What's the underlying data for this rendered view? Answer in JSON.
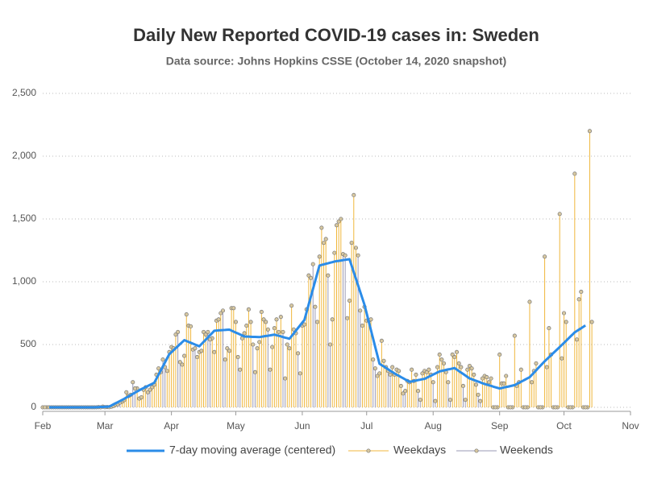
{
  "chart_data": {
    "type": "line",
    "title": "Daily New Reported COVID-19 cases in: Sweden",
    "subtitle": "Data source: Johns Hopkins CSSE (October 14, 2020 snapshot)",
    "xlim": [
      0,
      274
    ],
    "xticks": [
      {
        "value": 0,
        "label": "Feb"
      },
      {
        "value": 29,
        "label": "Mar"
      },
      {
        "value": 60,
        "label": "Apr"
      },
      {
        "value": 90,
        "label": "May"
      },
      {
        "value": 121,
        "label": "Jun"
      },
      {
        "value": 151,
        "label": "Jul"
      },
      {
        "value": 182,
        "label": "Aug"
      },
      {
        "value": 213,
        "label": "Sep"
      },
      {
        "value": 243,
        "label": "Oct"
      },
      {
        "value": 274,
        "label": "Nov"
      }
    ],
    "ylim": [
      0,
      2500
    ],
    "yticks": [
      0,
      500,
      {
        "value": 1000,
        "label": "1,000"
      },
      {
        "value": 1500,
        "label": "1,500"
      },
      {
        "value": 2000,
        "label": "2,000"
      },
      {
        "value": 2500,
        "label": "2,500"
      }
    ],
    "grid": true,
    "legend": "bottom",
    "x": [
      0,
      1,
      2,
      3,
      4,
      5,
      6,
      7,
      8,
      9,
      10,
      11,
      12,
      13,
      14,
      15,
      16,
      17,
      18,
      19,
      20,
      21,
      22,
      23,
      24,
      25,
      26,
      27,
      28,
      29,
      30,
      31,
      32,
      33,
      34,
      35,
      36,
      37,
      38,
      39,
      40,
      41,
      42,
      43,
      44,
      45,
      46,
      47,
      48,
      49,
      50,
      51,
      52,
      53,
      54,
      55,
      56,
      57,
      58,
      59,
      60,
      61,
      62,
      63,
      64,
      65,
      66,
      67,
      68,
      69,
      70,
      71,
      72,
      73,
      74,
      75,
      76,
      77,
      78,
      79,
      80,
      81,
      82,
      83,
      84,
      85,
      86,
      87,
      88,
      89,
      90,
      91,
      92,
      93,
      94,
      95,
      96,
      97,
      98,
      99,
      100,
      101,
      102,
      103,
      104,
      105,
      106,
      107,
      108,
      109,
      110,
      111,
      112,
      113,
      114,
      115,
      116,
      117,
      118,
      119,
      120,
      121,
      122,
      123,
      124,
      125,
      126,
      127,
      128,
      129,
      130,
      131,
      132,
      133,
      134,
      135,
      136,
      137,
      138,
      139,
      140,
      141,
      142,
      143,
      144,
      145,
      146,
      147,
      148,
      149,
      150,
      151,
      152,
      153,
      154,
      155,
      156,
      157,
      158,
      159,
      160,
      161,
      162,
      163,
      164,
      165,
      166,
      167,
      168,
      169,
      170,
      171,
      172,
      173,
      174,
      175,
      176,
      177,
      178,
      179,
      180,
      181,
      182,
      183,
      184,
      185,
      186,
      187,
      188,
      189,
      190,
      191,
      192,
      193,
      194,
      195,
      196,
      197,
      198,
      199,
      200,
      201,
      202,
      203,
      204,
      205,
      206,
      207,
      208,
      209,
      210,
      211,
      212,
      213,
      214,
      215,
      216,
      217,
      218,
      219,
      220,
      221,
      222,
      223,
      224,
      225,
      226,
      227,
      228,
      229,
      230,
      231,
      232,
      233,
      234,
      235,
      236,
      237,
      238,
      239,
      240,
      241,
      242,
      243,
      244,
      245,
      246,
      247,
      248,
      249,
      250,
      251,
      252,
      253,
      254,
      255,
      256
    ],
    "series": [
      {
        "name": "7-day moving average (centered)",
        "color": "#2b8ce8",
        "style": "line",
        "values": [
          null,
          null,
          null,
          0,
          0,
          0,
          0,
          0,
          0,
          0,
          0,
          0,
          0,
          0,
          0,
          0,
          0,
          0,
          0,
          0,
          0,
          0,
          0,
          0,
          0,
          1,
          2,
          3,
          3,
          4,
          5,
          6,
          15,
          24,
          33,
          41,
          50,
          59,
          68,
          78,
          87,
          97,
          107,
          117,
          126,
          136,
          145,
          153,
          162,
          170,
          179,
          187,
          196,
          228,
          261,
          293,
          326,
          358,
          391,
          423,
          439,
          455,
          471,
          487,
          503,
          519,
          535,
          528,
          521,
          514,
          507,
          500,
          493,
          486,
          504,
          521,
          539,
          557,
          575,
          592,
          610,
          611,
          613,
          614,
          615,
          616,
          618,
          619,
          611,
          603,
          595,
          588,
          580,
          572,
          564,
          563,
          563,
          562,
          561,
          561,
          560,
          559,
          562,
          565,
          568,
          570,
          573,
          576,
          579,
          574,
          570,
          565,
          560,
          555,
          551,
          546,
          567,
          589,
          610,
          632,
          653,
          675,
          696,
          758,
          820,
          882,
          943,
          1005,
          1067,
          1129,
          1134,
          1138,
          1143,
          1147,
          1152,
          1156,
          1161,
          1164,
          1166,
          1169,
          1172,
          1175,
          1177,
          1180,
          1128,
          1076,
          1024,
          972,
          920,
          868,
          816,
          749,
          682,
          615,
          548,
          481,
          414,
          347,
          336,
          325,
          314,
          303,
          292,
          281,
          270,
          260,
          251,
          241,
          232,
          222,
          213,
          203,
          206,
          210,
          213,
          217,
          220,
          224,
          227,
          235,
          244,
          252,
          261,
          269,
          278,
          286,
          290,
          294,
          298,
          302,
          305,
          309,
          313,
          301,
          289,
          277,
          266,
          254,
          242,
          230,
          224,
          217,
          211,
          205,
          199,
          192,
          186,
          181,
          176,
          171,
          165,
          160,
          155,
          150,
          154,
          158,
          162,
          165,
          169,
          173,
          177,
          186,
          195,
          204,
          213,
          222,
          231,
          240,
          258,
          276,
          294,
          313,
          331,
          349,
          367,
          383,
          399,
          415,
          432,
          448,
          464,
          480,
          497,
          513,
          530,
          547,
          564,
          580,
          597,
          608,
          619,
          630,
          641,
          652,
          null,
          null,
          null
        ]
      },
      {
        "name": "Weekdays",
        "color": "#f0b73c",
        "style": "needle",
        "values": [
          null,
          null,
          0,
          0,
          0,
          0,
          0,
          null,
          null,
          0,
          0,
          0,
          0,
          0,
          null,
          null,
          0,
          0,
          0,
          0,
          0,
          null,
          null,
          0,
          0,
          0,
          1,
          0,
          null,
          null,
          2,
          1,
          5,
          10,
          20,
          null,
          null,
          45,
          58,
          120,
          90,
          100,
          null,
          null,
          150,
          70,
          80,
          140,
          160,
          null,
          null,
          160,
          180,
          260,
          310,
          280,
          null,
          null,
          290,
          440,
          480,
          470,
          580,
          null,
          null,
          340,
          410,
          740,
          650,
          645,
          null,
          null,
          400,
          440,
          450,
          600,
          580,
          null,
          null,
          550,
          440,
          690,
          700,
          750,
          null,
          null,
          470,
          450,
          790,
          790,
          680,
          null,
          null,
          550,
          590,
          650,
          780,
          680,
          null,
          null,
          470,
          520,
          760,
          700,
          680,
          null,
          null,
          480,
          630,
          700,
          600,
          720,
          null,
          null,
          500,
          470,
          810,
          620,
          590,
          null,
          null,
          650,
          660,
          780,
          1050,
          1030,
          null,
          null,
          680,
          1200,
          1430,
          1310,
          1340,
          null,
          null,
          700,
          1230,
          1450,
          1480,
          1500,
          null,
          null,
          710,
          850,
          1310,
          1690,
          1270,
          null,
          null,
          650,
          800,
          690,
          690,
          700,
          null,
          null,
          250,
          270,
          530,
          370,
          320,
          null,
          null,
          320,
          260,
          300,
          290,
          170,
          null,
          null,
          210,
          200,
          300,
          210,
          260,
          null,
          null,
          270,
          290,
          280,
          300,
          260,
          null,
          null,
          320,
          420,
          380,
          350,
          280,
          null,
          null,
          420,
          400,
          440,
          350,
          320,
          null,
          null,
          300,
          330,
          310,
          260,
          180,
          null,
          null,
          230,
          250,
          240,
          200,
          230,
          null,
          null,
          0,
          420,
          190,
          190,
          250,
          null,
          null,
          0,
          570,
          170,
          200,
          300,
          null,
          null,
          0,
          840,
          200,
          290,
          350,
          null,
          null,
          0,
          1200,
          320,
          630,
          420,
          null,
          null,
          0,
          1540,
          390,
          750,
          680,
          null,
          null,
          0,
          1860,
          540,
          860,
          920,
          null,
          null,
          0,
          2200,
          680
        ]
      },
      {
        "name": "Weekends",
        "color": "#9a9ab4",
        "style": "needle",
        "values": [
          0,
          0,
          null,
          null,
          null,
          null,
          null,
          0,
          0,
          null,
          null,
          null,
          null,
          null,
          0,
          0,
          null,
          null,
          null,
          null,
          null,
          0,
          0,
          null,
          null,
          null,
          null,
          null,
          5,
          1,
          null,
          null,
          null,
          null,
          null,
          24,
          38,
          null,
          null,
          null,
          null,
          null,
          200,
          150,
          null,
          null,
          null,
          null,
          null,
          120,
          140,
          null,
          null,
          null,
          null,
          null,
          380,
          320,
          null,
          null,
          null,
          null,
          null,
          600,
          360,
          null,
          null,
          null,
          null,
          null,
          460,
          470,
          null,
          null,
          null,
          null,
          null,
          600,
          540,
          null,
          null,
          null,
          null,
          null,
          770,
          380,
          null,
          null,
          null,
          null,
          null,
          400,
          300,
          null,
          null,
          null,
          null,
          null,
          500,
          280,
          null,
          null,
          null,
          null,
          null,
          620,
          300,
          null,
          null,
          null,
          null,
          null,
          600,
          230,
          null,
          null,
          null,
          null,
          null,
          430,
          270,
          null,
          null,
          null,
          null,
          null,
          1140,
          800,
          null,
          null,
          null,
          null,
          null,
          1050,
          500,
          null,
          null,
          null,
          null,
          null,
          1220,
          1210,
          null,
          null,
          null,
          null,
          null,
          1210,
          770,
          null,
          null,
          null,
          null,
          null,
          380,
          310,
          null,
          null,
          null,
          null,
          null,
          290,
          260,
          null,
          null,
          null,
          null,
          null,
          110,
          130,
          null,
          null,
          null,
          null,
          null,
          130,
          60,
          null,
          null,
          null,
          null,
          null,
          200,
          50,
          null,
          null,
          null,
          null,
          null,
          200,
          60,
          null,
          null,
          null,
          null,
          null,
          170,
          60,
          null,
          null,
          null,
          null,
          null,
          100,
          50,
          null,
          null,
          null,
          null,
          null,
          0,
          0,
          null,
          null,
          null,
          null,
          null,
          0,
          0,
          null,
          null,
          null,
          null,
          null,
          0,
          0,
          null,
          null,
          null,
          null,
          null,
          0,
          0,
          null,
          null,
          null,
          null,
          null,
          0,
          0,
          null,
          null,
          null,
          null,
          null,
          0,
          0,
          null,
          null,
          null,
          null,
          null,
          0,
          0,
          null,
          null,
          null
        ]
      }
    ]
  }
}
